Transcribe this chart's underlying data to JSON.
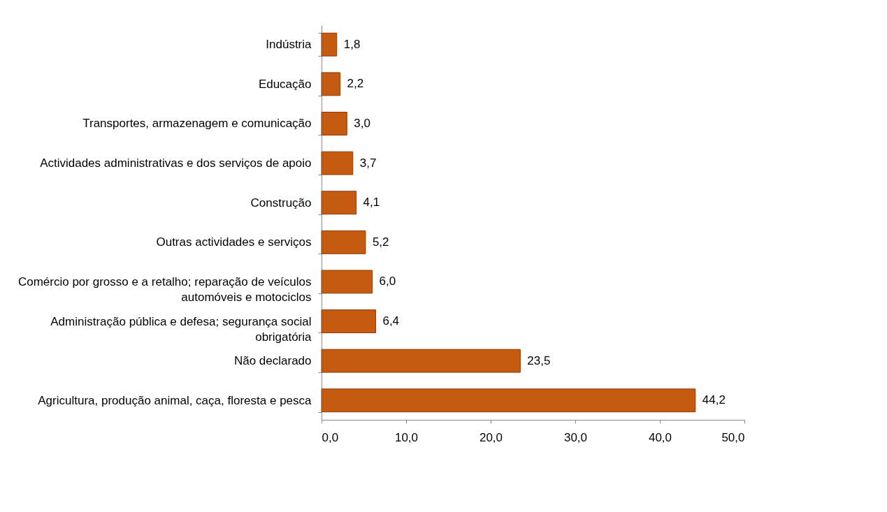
{
  "chart_data": {
    "type": "bar",
    "orientation": "horizontal",
    "categories": [
      "Indústria",
      "Educação",
      "Transportes, armazenagem e comunicação",
      "Actividades administrativas e dos serviços de apoio",
      "Construção",
      "Outras actividades e serviços",
      "Comércio por grosso e a retalho; reparação de veículos automóveis e  motociclos",
      "Administração pública e defesa; segurança social obrigatória",
      "Não declarado",
      "Agricultura, produção animal, caça, floresta e pesca"
    ],
    "values": [
      1.8,
      2.2,
      3.0,
      3.7,
      4.1,
      5.2,
      6.0,
      6.4,
      23.5,
      44.2
    ],
    "value_labels": [
      "1,8",
      "2,2",
      "3,0",
      "3,7",
      "4,1",
      "5,2",
      "6,0",
      "6,4",
      "23,5",
      "44,2"
    ],
    "color": "#c55a11",
    "xlim": [
      0,
      50
    ],
    "xticks": [
      {
        "value": 0,
        "label": "0,0"
      },
      {
        "value": 10,
        "label": "10,0"
      },
      {
        "value": 20,
        "label": "20,0"
      },
      {
        "value": 30,
        "label": "30,0"
      },
      {
        "value": 40,
        "label": "40,0"
      },
      {
        "value": 50,
        "label": "50,0"
      }
    ],
    "grid": false
  }
}
